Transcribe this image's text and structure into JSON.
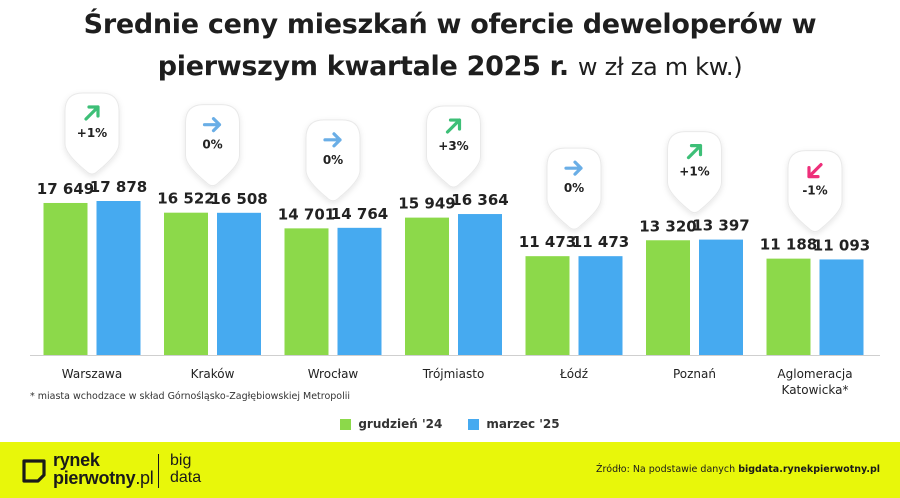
{
  "title": {
    "line1": "Średnie ceny mieszkań w ofercie deweloperów w",
    "line2_bold": "pierwszym kwartale 2025 r.",
    "line2_unit": "w zł za m kw.)"
  },
  "chart_data": {
    "type": "bar",
    "categories": [
      "Warszawa",
      "Kraków",
      "Wrocław",
      "Trójmiasto",
      "Łódź",
      "Poznań",
      "Aglomeracja\nKatowicka*"
    ],
    "series": [
      {
        "name": "grudzień '24",
        "color": "#8cd94a",
        "values": [
          17649,
          16522,
          14701,
          15949,
          11473,
          13320,
          11188
        ],
        "labels": [
          "17 649",
          "16 522",
          "14 701",
          "15 949",
          "11 473",
          "13 320",
          "11 188"
        ]
      },
      {
        "name": "marzec '25",
        "color": "#46aaf0",
        "values": [
          17878,
          16508,
          14764,
          16364,
          11473,
          13397,
          11093
        ],
        "labels": [
          "17 878",
          "16 508",
          "14 764",
          "16 364",
          "11 473",
          "13 397",
          "11 093"
        ]
      }
    ],
    "changes": [
      {
        "label": "+1%",
        "direction": "up",
        "icon": "arrow-up-right-icon",
        "color": "#3dbf77"
      },
      {
        "label": "0%",
        "direction": "flat",
        "icon": "arrow-right-icon",
        "color": "#6aaee6"
      },
      {
        "label": "0%",
        "direction": "flat",
        "icon": "arrow-right-icon",
        "color": "#6aaee6"
      },
      {
        "label": "+3%",
        "direction": "up",
        "icon": "arrow-up-right-icon",
        "color": "#3dbf77"
      },
      {
        "label": "0%",
        "direction": "flat",
        "icon": "arrow-right-icon",
        "color": "#6aaee6"
      },
      {
        "label": "+1%",
        "direction": "up",
        "icon": "arrow-up-right-icon",
        "color": "#3dbf77"
      },
      {
        "label": "-1%",
        "direction": "down",
        "icon": "arrow-down-left-icon",
        "color": "#ee2f7a"
      }
    ],
    "xlabel": "",
    "ylabel": "",
    "grid": false,
    "legend_position": "bottom"
  },
  "footnote": "* miasta wchodzace w skład Górnośląsko-Zagłębiowskiej Metropolii",
  "legend": {
    "items": [
      {
        "label": "grudzień '24",
        "color": "#8cd94a"
      },
      {
        "label": "marzec '25",
        "color": "#46aaf0"
      }
    ]
  },
  "footer": {
    "logo_line1": "rynek",
    "logo_line2": "pierwotny",
    "logo_line2_suffix": ".pl",
    "bigdata_line1": "big",
    "bigdata_line2": "data",
    "source_prefix": "Źródło: Na podstawie danych",
    "source_bold": "bigdata.rynekpierwotny.pl",
    "background": "#e8f70a"
  }
}
